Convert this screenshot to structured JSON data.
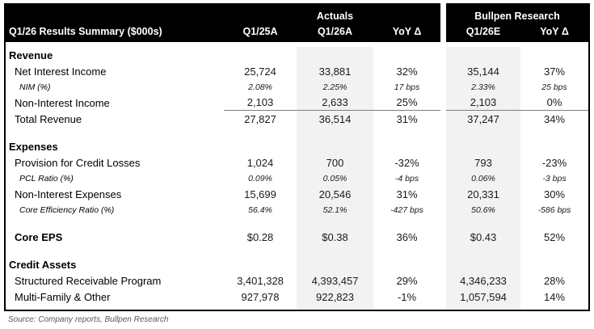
{
  "chart_data": {
    "type": "table",
    "title": "Q1/26 Results Summary ($000s)",
    "column_groups": [
      {
        "label": "Actuals",
        "columns": [
          "Q1/26A",
          "YoY Δ"
        ]
      },
      {
        "label": "Bullpen Research",
        "columns": [
          "Q1/26E",
          "YoY Δ"
        ]
      }
    ],
    "columns": [
      "Q1/25A",
      "Q1/26A",
      "YoY Δ",
      "Q1/26E",
      "YoY Δ"
    ],
    "rows": [
      {
        "type": "section",
        "label": "Revenue",
        "values": [
          "",
          "",
          "",
          "",
          ""
        ]
      },
      {
        "type": "data",
        "label": "Net Interest Income",
        "values": [
          "25,724",
          "33,881",
          "32%",
          "35,144",
          "37%"
        ]
      },
      {
        "type": "sub",
        "label": "NIM (%)",
        "values": [
          "2.08%",
          "2.25%",
          "17 bps",
          "2.33%",
          "25 bps"
        ]
      },
      {
        "type": "data",
        "label": "Non-Interest Income",
        "underline": true,
        "values": [
          "2,103",
          "2,633",
          "25%",
          "2,103",
          "0%"
        ]
      },
      {
        "type": "data",
        "label": "Total Revenue",
        "values": [
          "27,827",
          "36,514",
          "31%",
          "37,247",
          "34%"
        ]
      },
      {
        "type": "section",
        "label": "Expenses",
        "values": [
          "",
          "",
          "",
          "",
          ""
        ]
      },
      {
        "type": "data",
        "label": "Provision for Credit Losses",
        "values": [
          "1,024",
          "700",
          "-32%",
          "793",
          "-23%"
        ]
      },
      {
        "type": "sub",
        "label": "PCL Ratio (%)",
        "values": [
          "0.09%",
          "0.05%",
          "-4 bps",
          "0.06%",
          "-3 bps"
        ]
      },
      {
        "type": "data",
        "label": "Non-Interest Expenses",
        "values": [
          "15,699",
          "20,546",
          "31%",
          "20,331",
          "30%"
        ]
      },
      {
        "type": "sub",
        "label": "Core Efficiency Ratio (%)",
        "values": [
          "56.4%",
          "52.1%",
          "-427 bps",
          "50.6%",
          "-586 bps"
        ]
      },
      {
        "type": "bold",
        "label": "Core EPS",
        "values": [
          "$0.28",
          "$0.38",
          "36%",
          "$0.43",
          "52%"
        ]
      },
      {
        "type": "section",
        "label": "Credit Assets",
        "values": [
          "",
          "",
          "",
          "",
          ""
        ]
      },
      {
        "type": "data",
        "label": "Structured Receivable Program",
        "values": [
          "3,401,328",
          "4,393,457",
          "29%",
          "4,346,233",
          "28%"
        ]
      },
      {
        "type": "data",
        "label": "Multi-Family & Other",
        "values": [
          "927,978",
          "922,823",
          "-1%",
          "1,057,594",
          "14%"
        ]
      }
    ],
    "source": "Source: Company reports, Bullpen Research",
    "layout": {
      "header_bg": "#000000",
      "header_text": "#ffffff",
      "shaded_columns": [
        "Q1/26A",
        "Q1/26E"
      ],
      "shade_color": "#f2f2f2",
      "sum_rule_color": "#7f7f7f",
      "source_text_color": "#595959"
    }
  }
}
